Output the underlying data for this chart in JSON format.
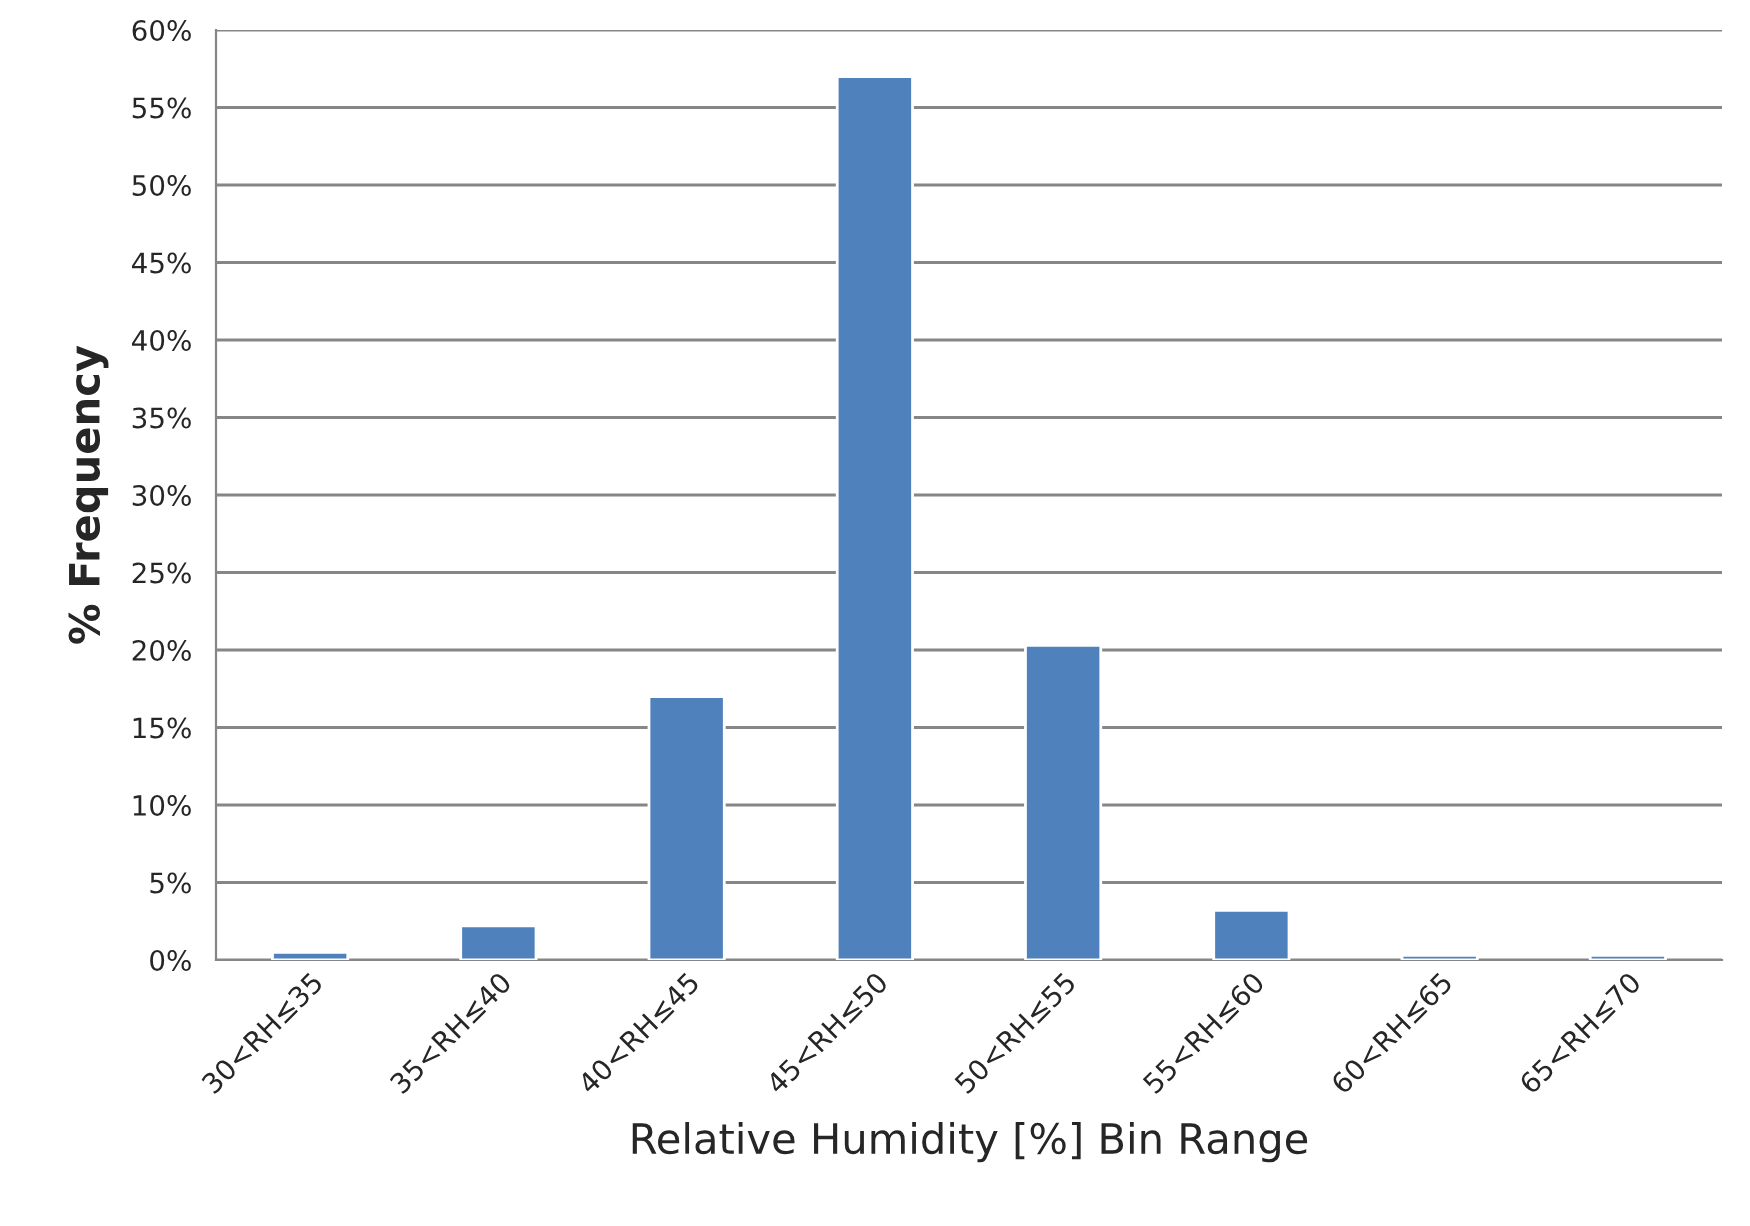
{
  "chart_data": {
    "type": "bar",
    "xlabel": "Relative Humidity [%] Bin Range",
    "ylabel": "% Frequency",
    "categories": [
      "30<RH≤35",
      "35<RH≤40",
      "40<RH≤45",
      "45<RH≤50",
      "50<RH≤55",
      "55<RH≤60",
      "60<RH≤65",
      "65<RH≤70"
    ],
    "values": [
      0.5,
      2.2,
      17.0,
      57.0,
      20.3,
      3.2,
      0.3,
      0.3
    ],
    "color": "#4f81bd",
    "ylim": [
      0,
      60
    ],
    "yticks": [
      {
        "value": 0,
        "label": "0%"
      },
      {
        "value": 5,
        "label": "5%"
      },
      {
        "value": 10,
        "label": "10%"
      },
      {
        "value": 15,
        "label": "15%"
      },
      {
        "value": 20,
        "label": "20%"
      },
      {
        "value": 25,
        "label": "25%"
      },
      {
        "value": 30,
        "label": "30%"
      },
      {
        "value": 35,
        "label": "35%"
      },
      {
        "value": 40,
        "label": "40%"
      },
      {
        "value": 45,
        "label": "45%"
      },
      {
        "value": 50,
        "label": "50%"
      },
      {
        "value": 55,
        "label": "55%"
      },
      {
        "value": 60,
        "label": "60%"
      }
    ],
    "grid": "y",
    "legend": false
  }
}
